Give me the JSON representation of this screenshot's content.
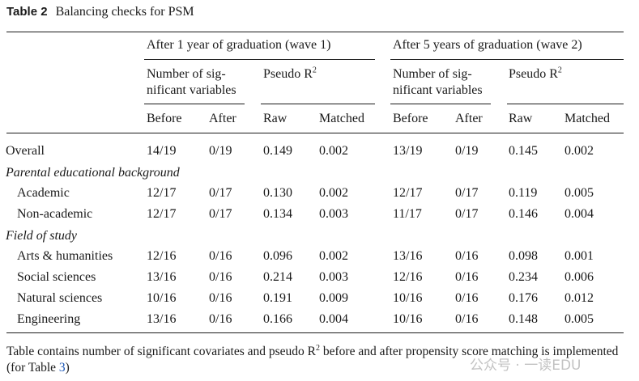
{
  "caption": {
    "label": "Table 2",
    "title": "Balancing checks for PSM"
  },
  "groups": {
    "wave1": "After 1 year of graduation (wave 1)",
    "wave2": "After 5 years of graduation (wave 2)"
  },
  "subheads": {
    "w1_sig_line1": "Number of sig-",
    "w1_sig_line2": "nificant variables",
    "w1_pseudo": "Pseudo R",
    "w2_sig_line1": "Number of sig-",
    "w2_sig_line2": "nificant variables",
    "w2_pseudo": "Pseudo R",
    "pseudo_sup": "2"
  },
  "columns": [
    "Before",
    "After",
    "Raw",
    "Matched",
    "Before",
    "After",
    "Raw",
    "Matched"
  ],
  "rows": [
    {
      "label": "Overall",
      "values": [
        "14/19",
        "0/19",
        "0.149",
        "0.002",
        "13/19",
        "0/19",
        "0.145",
        "0.002"
      ]
    },
    {
      "label": "Parental educational background",
      "section": true
    },
    {
      "label": "Academic",
      "indent": true,
      "values": [
        "12/17",
        "0/17",
        "0.130",
        "0.002",
        "12/17",
        "0/17",
        "0.119",
        "0.005"
      ]
    },
    {
      "label": "Non-academic",
      "indent": true,
      "values": [
        "12/17",
        "0/17",
        "0.134",
        "0.003",
        "11/17",
        "0/17",
        "0.146",
        "0.004"
      ]
    },
    {
      "label": "Field of study",
      "section": true
    },
    {
      "label": "Arts & humanities",
      "indent": true,
      "values": [
        "12/16",
        "0/16",
        "0.096",
        "0.002",
        "13/16",
        "0/16",
        "0.098",
        "0.001"
      ]
    },
    {
      "label": "Social sciences",
      "indent": true,
      "values": [
        "13/16",
        "0/16",
        "0.214",
        "0.003",
        "12/16",
        "0/16",
        "0.234",
        "0.006"
      ]
    },
    {
      "label": "Natural sciences",
      "indent": true,
      "values": [
        "10/16",
        "0/16",
        "0.191",
        "0.009",
        "10/16",
        "0/16",
        "0.176",
        "0.012"
      ]
    },
    {
      "label": "Engineering",
      "indent": true,
      "values": [
        "13/16",
        "0/16",
        "0.166",
        "0.004",
        "10/16",
        "0/16",
        "0.148",
        "0.005"
      ]
    }
  ],
  "footnote": {
    "part1": "Table contains number of significant covariates and pseudo R",
    "sup": "2",
    "part2": " before and after propensity score matching is implemented (for Table ",
    "link": "3",
    "part3": ")"
  },
  "watermark": "公众号 · 一读EDU"
}
